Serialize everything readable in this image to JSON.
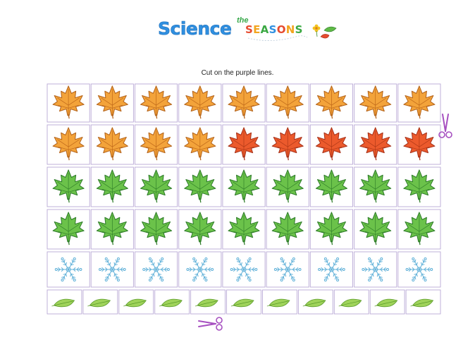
{
  "header": {
    "title_main": "Science",
    "title_small": "the",
    "title_seasons": "SEASONS",
    "season_letter_colors": [
      "#e64a2e",
      "#f2a51f",
      "#3aa842",
      "#2f8fe0",
      "#e64a2e",
      "#f2a51f",
      "#3aa842"
    ]
  },
  "instruction": "Cut on the purple lines.",
  "grid": {
    "cut_line_color": "#b9a9d6",
    "scissors_color": "#a64fc0",
    "rows": [
      {
        "name": "orange-maple-row",
        "icon": "maple-leaf-icon",
        "cells": 9,
        "colors": [
          "orange",
          "orange",
          "orange",
          "orange",
          "orange",
          "orange",
          "orange",
          "orange",
          "orange"
        ]
      },
      {
        "name": "orange-red-maple-row",
        "icon": "maple-leaf-icon",
        "cells": 9,
        "colors": [
          "orange",
          "orange",
          "orange",
          "orange",
          "red",
          "red",
          "red",
          "red",
          "red"
        ]
      },
      {
        "name": "green-maple-row-1",
        "icon": "maple-leaf-icon",
        "cells": 9,
        "colors": [
          "green",
          "green",
          "green",
          "green",
          "green",
          "green",
          "green",
          "green",
          "green"
        ]
      },
      {
        "name": "green-maple-row-2",
        "icon": "maple-leaf-icon",
        "cells": 9,
        "colors": [
          "green",
          "green",
          "green",
          "green",
          "green",
          "green",
          "green",
          "green",
          "green"
        ]
      },
      {
        "name": "snowflake-row",
        "icon": "snowflake-icon",
        "cells": 9
      },
      {
        "name": "small-leaf-row",
        "icon": "small-leaf-icon",
        "cells": 11
      }
    ]
  },
  "colors": {
    "orange": {
      "fill": "#f3a33a",
      "stroke": "#b5651d",
      "vein": "#c06a1a"
    },
    "red": {
      "fill": "#ec5a2c",
      "stroke": "#a8321a",
      "vein": "#b23a18"
    },
    "green": {
      "fill": "#6bc24a",
      "stroke": "#2f7d2a",
      "vein": "#35852c"
    },
    "snow": "#5fb0d8",
    "small_leaf": {
      "fill": "#9fd35a",
      "stroke": "#5a9a2a"
    }
  }
}
